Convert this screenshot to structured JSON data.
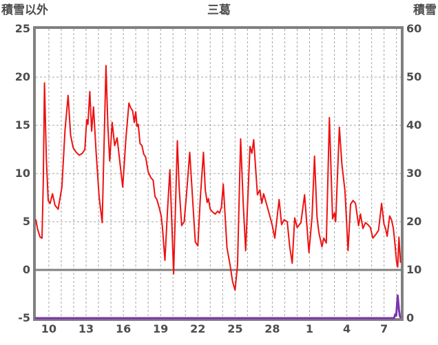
{
  "chart_data": {
    "type": "line",
    "title": "三葛",
    "left_axis": {
      "label": "積雪以外",
      "min": -5,
      "max": 25,
      "tick_values": [
        25,
        20,
        15,
        10,
        5,
        0,
        -5
      ],
      "dashed_gridline_values": [
        20,
        15,
        10,
        5
      ],
      "solid_line_value": 0
    },
    "right_axis": {
      "label": "積雪",
      "min": 0,
      "max": 60,
      "tick_values": [
        60,
        50,
        40,
        30,
        20,
        10,
        0
      ]
    },
    "x_axis": {
      "domain_days": [
        8.95,
        38.35
      ],
      "tick_labels": [
        "10",
        "13",
        "16",
        "19",
        "22",
        "25",
        "28",
        "1",
        "4",
        "7"
      ],
      "tick_days": [
        10,
        13,
        16,
        19,
        22,
        25,
        28,
        31,
        34,
        37
      ],
      "gridline_start_day": 10,
      "gridline_end_day": 38,
      "gridline_interval_days": 1
    },
    "style": {
      "frame_color": "#808080",
      "grid_color": "#a3a3a3",
      "text_color": "#4d4d4d",
      "background": "#ffffff"
    },
    "series": [
      {
        "name": "red",
        "axis": "left",
        "color": "#ee1111",
        "width": 2,
        "points": [
          [
            8.95,
            5.2
          ],
          [
            9.1,
            4.2
          ],
          [
            9.3,
            3.4
          ],
          [
            9.45,
            3.3
          ],
          [
            9.55,
            9.0
          ],
          [
            9.65,
            19.4
          ],
          [
            9.8,
            11.5
          ],
          [
            9.95,
            7.2
          ],
          [
            10.1,
            6.9
          ],
          [
            10.3,
            7.9
          ],
          [
            10.5,
            6.7
          ],
          [
            10.75,
            6.3
          ],
          [
            11.05,
            8.6
          ],
          [
            11.3,
            14.5
          ],
          [
            11.55,
            18.1
          ],
          [
            11.75,
            14.0
          ],
          [
            11.95,
            12.7
          ],
          [
            12.2,
            12.2
          ],
          [
            12.45,
            11.9
          ],
          [
            12.7,
            12.1
          ],
          [
            12.9,
            12.5
          ],
          [
            13.05,
            15.6
          ],
          [
            13.15,
            15.1
          ],
          [
            13.3,
            18.5
          ],
          [
            13.45,
            14.4
          ],
          [
            13.6,
            16.9
          ],
          [
            13.8,
            12.4
          ],
          [
            14.05,
            7.6
          ],
          [
            14.3,
            4.9
          ],
          [
            14.45,
            13.0
          ],
          [
            14.6,
            21.2
          ],
          [
            14.75,
            15.0
          ],
          [
            14.9,
            11.3
          ],
          [
            15.1,
            15.3
          ],
          [
            15.3,
            12.9
          ],
          [
            15.5,
            13.7
          ],
          [
            15.7,
            11.4
          ],
          [
            15.95,
            8.6
          ],
          [
            16.2,
            13.5
          ],
          [
            16.45,
            17.3
          ],
          [
            16.6,
            16.8
          ],
          [
            16.75,
            16.5
          ],
          [
            16.88,
            15.3
          ],
          [
            17.0,
            16.4
          ],
          [
            17.1,
            14.9
          ],
          [
            17.2,
            15.1
          ],
          [
            17.35,
            13.1
          ],
          [
            17.5,
            12.9
          ],
          [
            17.65,
            12.0
          ],
          [
            17.8,
            11.7
          ],
          [
            18.0,
            10.2
          ],
          [
            18.2,
            9.6
          ],
          [
            18.4,
            9.3
          ],
          [
            18.55,
            7.6
          ],
          [
            18.7,
            7.3
          ],
          [
            18.9,
            6.4
          ],
          [
            19.05,
            5.6
          ],
          [
            19.15,
            4.4
          ],
          [
            19.35,
            1.0
          ],
          [
            19.55,
            6.0
          ],
          [
            19.75,
            10.4
          ],
          [
            19.9,
            5.0
          ],
          [
            20.05,
            -0.4
          ],
          [
            20.2,
            6.5
          ],
          [
            20.35,
            13.4
          ],
          [
            20.5,
            8.5
          ],
          [
            20.7,
            4.6
          ],
          [
            20.9,
            5.0
          ],
          [
            21.1,
            8.0
          ],
          [
            21.35,
            12.2
          ],
          [
            21.6,
            7.0
          ],
          [
            21.8,
            2.9
          ],
          [
            22.0,
            2.5
          ],
          [
            22.2,
            7.5
          ],
          [
            22.45,
            12.2
          ],
          [
            22.6,
            8.3
          ],
          [
            22.75,
            7.0
          ],
          [
            22.85,
            7.4
          ],
          [
            23.0,
            6.3
          ],
          [
            23.2,
            6.0
          ],
          [
            23.4,
            5.8
          ],
          [
            23.6,
            6.1
          ],
          [
            23.75,
            5.9
          ],
          [
            23.9,
            6.5
          ],
          [
            24.05,
            8.9
          ],
          [
            24.35,
            2.3
          ],
          [
            24.6,
            0.5
          ],
          [
            24.8,
            -1.2
          ],
          [
            25.0,
            -2.1
          ],
          [
            25.2,
            0.5
          ],
          [
            25.45,
            13.6
          ],
          [
            25.65,
            7.0
          ],
          [
            25.85,
            2.0
          ],
          [
            26.2,
            12.8
          ],
          [
            26.35,
            12.1
          ],
          [
            26.5,
            13.5
          ],
          [
            26.8,
            7.8
          ],
          [
            27.0,
            8.3
          ],
          [
            27.15,
            6.9
          ],
          [
            27.3,
            7.9
          ],
          [
            27.5,
            7.0
          ],
          [
            27.8,
            5.6
          ],
          [
            28.0,
            4.6
          ],
          [
            28.2,
            3.3
          ],
          [
            28.55,
            7.3
          ],
          [
            28.75,
            4.7
          ],
          [
            28.95,
            5.2
          ],
          [
            29.2,
            5.0
          ],
          [
            29.4,
            2.4
          ],
          [
            29.6,
            0.7
          ],
          [
            29.8,
            5.4
          ],
          [
            30.0,
            4.4
          ],
          [
            30.3,
            4.9
          ],
          [
            30.6,
            7.8
          ],
          [
            30.95,
            1.8
          ],
          [
            31.2,
            5.5
          ],
          [
            31.4,
            11.8
          ],
          [
            31.6,
            5.5
          ],
          [
            31.75,
            3.9
          ],
          [
            32.0,
            2.4
          ],
          [
            32.15,
            3.3
          ],
          [
            32.35,
            2.8
          ],
          [
            32.6,
            15.8
          ],
          [
            32.85,
            5.3
          ],
          [
            33.0,
            5.9
          ],
          [
            33.1,
            5.0
          ],
          [
            33.4,
            14.8
          ],
          [
            33.6,
            11.0
          ],
          [
            33.85,
            8.2
          ],
          [
            34.1,
            2.0
          ],
          [
            34.3,
            6.8
          ],
          [
            34.5,
            7.2
          ],
          [
            34.7,
            6.9
          ],
          [
            34.95,
            4.6
          ],
          [
            35.1,
            5.8
          ],
          [
            35.3,
            4.3
          ],
          [
            35.5,
            4.9
          ],
          [
            35.7,
            4.7
          ],
          [
            35.9,
            4.4
          ],
          [
            36.1,
            3.3
          ],
          [
            36.35,
            3.7
          ],
          [
            36.55,
            4.1
          ],
          [
            36.8,
            6.9
          ],
          [
            37.0,
            4.7
          ],
          [
            37.1,
            4.4
          ],
          [
            37.25,
            3.5
          ],
          [
            37.45,
            5.6
          ],
          [
            37.6,
            5.2
          ],
          [
            37.75,
            4.3
          ],
          [
            37.9,
            2.4
          ],
          [
            38.0,
            0.9
          ],
          [
            38.1,
            0.3
          ],
          [
            38.2,
            3.4
          ],
          [
            38.32,
            0.8
          ]
        ]
      },
      {
        "name": "purple",
        "axis": "right",
        "color": "#7a35ad",
        "width": 3,
        "points": [
          [
            8.95,
            0
          ],
          [
            37.8,
            0
          ],
          [
            37.9,
            0.8
          ],
          [
            37.98,
            0.5
          ],
          [
            38.1,
            4.7
          ],
          [
            38.2,
            1.8
          ],
          [
            38.27,
            0.4
          ],
          [
            38.32,
            0.2
          ]
        ]
      }
    ]
  }
}
